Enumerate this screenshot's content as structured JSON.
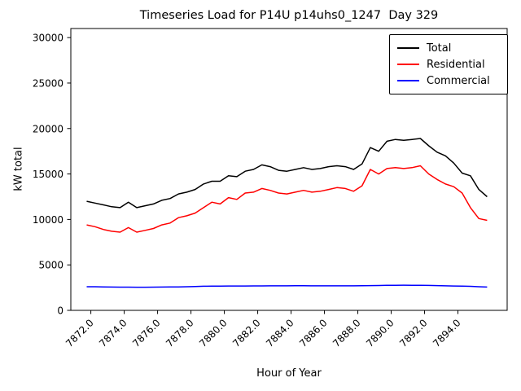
{
  "chart_data": {
    "type": "line",
    "title": "Timeseries Load for P14U p14uhs0_1247  Day 329",
    "xlabel": "Hour of Year",
    "ylabel": "kW total",
    "grid": false,
    "legend_position": "upper right",
    "xlim": [
      7870.8,
      7896.95
    ],
    "ylim": [
      0,
      30000
    ],
    "x_tick_labels": [
      "7872.0",
      "7874.0",
      "7876.0",
      "7878.0",
      "7880.0",
      "7882.0",
      "7884.0",
      "7886.0",
      "7888.0",
      "7890.0",
      "7892.0",
      "7894.0"
    ],
    "x_ticks": [
      7872,
      7874,
      7876,
      7878,
      7880,
      7882,
      7884,
      7886,
      7888,
      7890,
      7892,
      7894
    ],
    "y_ticks": [
      0,
      5000,
      10000,
      15000,
      20000,
      25000,
      30000
    ],
    "y_tick_labels": [
      "0",
      "5000",
      "10000",
      "15000",
      "20000",
      "25000",
      "30000"
    ],
    "x": [
      7871.75,
      7872.25,
      7872.75,
      7873.25,
      7873.75,
      7874.25,
      7874.75,
      7875.25,
      7875.75,
      7876.25,
      7876.75,
      7877.25,
      7877.75,
      7878.25,
      7878.75,
      7879.25,
      7879.75,
      7880.25,
      7880.75,
      7881.25,
      7881.75,
      7882.25,
      7882.75,
      7883.25,
      7883.75,
      7884.25,
      7884.75,
      7885.25,
      7885.75,
      7886.25,
      7886.75,
      7887.25,
      7887.75,
      7888.25,
      7888.75,
      7889.25,
      7889.75,
      7890.25,
      7890.75,
      7891.25,
      7891.75,
      7892.25,
      7892.75,
      7893.25,
      7893.75,
      7894.25,
      7894.75,
      7895.25,
      7895.75
    ],
    "series": [
      {
        "name": "Total",
        "color": "#000000",
        "values": [
          12000,
          11800,
          11600,
          11400,
          11300,
          11900,
          11300,
          11500,
          11700,
          12100,
          12300,
          12800,
          13000,
          13300,
          13900,
          14200,
          14200,
          14800,
          14700,
          15300,
          15500,
          16000,
          15800,
          15400,
          15300,
          15500,
          15700,
          15500,
          15600,
          15800,
          15900,
          15800,
          15500,
          16100,
          17900,
          17500,
          18600,
          18800,
          18700,
          18800,
          18900,
          18100,
          17400,
          17000,
          16200,
          15100,
          14800,
          13300,
          12500
        ]
      },
      {
        "name": "Residential",
        "color": "#ff0000",
        "values": [
          9400,
          9200,
          8900,
          8700,
          8600,
          9100,
          8600,
          8800,
          9000,
          9400,
          9600,
          10200,
          10400,
          10700,
          11300,
          11900,
          11700,
          12400,
          12200,
          12900,
          13000,
          13400,
          13200,
          12900,
          12800,
          13000,
          13200,
          13000,
          13100,
          13300,
          13500,
          13400,
          13100,
          13700,
          15500,
          15000,
          15600,
          15700,
          15600,
          15700,
          15900,
          15000,
          14400,
          13900,
          13600,
          12900,
          11300,
          10100,
          9900
        ]
      },
      {
        "name": "Commercial",
        "color": "#0000ff",
        "values": [
          2600,
          2600,
          2580,
          2560,
          2550,
          2550,
          2540,
          2540,
          2550,
          2560,
          2570,
          2580,
          2600,
          2620,
          2650,
          2660,
          2670,
          2680,
          2680,
          2680,
          2690,
          2690,
          2700,
          2700,
          2700,
          2710,
          2710,
          2700,
          2700,
          2700,
          2700,
          2700,
          2700,
          2710,
          2720,
          2730,
          2750,
          2760,
          2770,
          2760,
          2750,
          2740,
          2720,
          2700,
          2680,
          2660,
          2640,
          2600,
          2560
        ]
      }
    ]
  }
}
